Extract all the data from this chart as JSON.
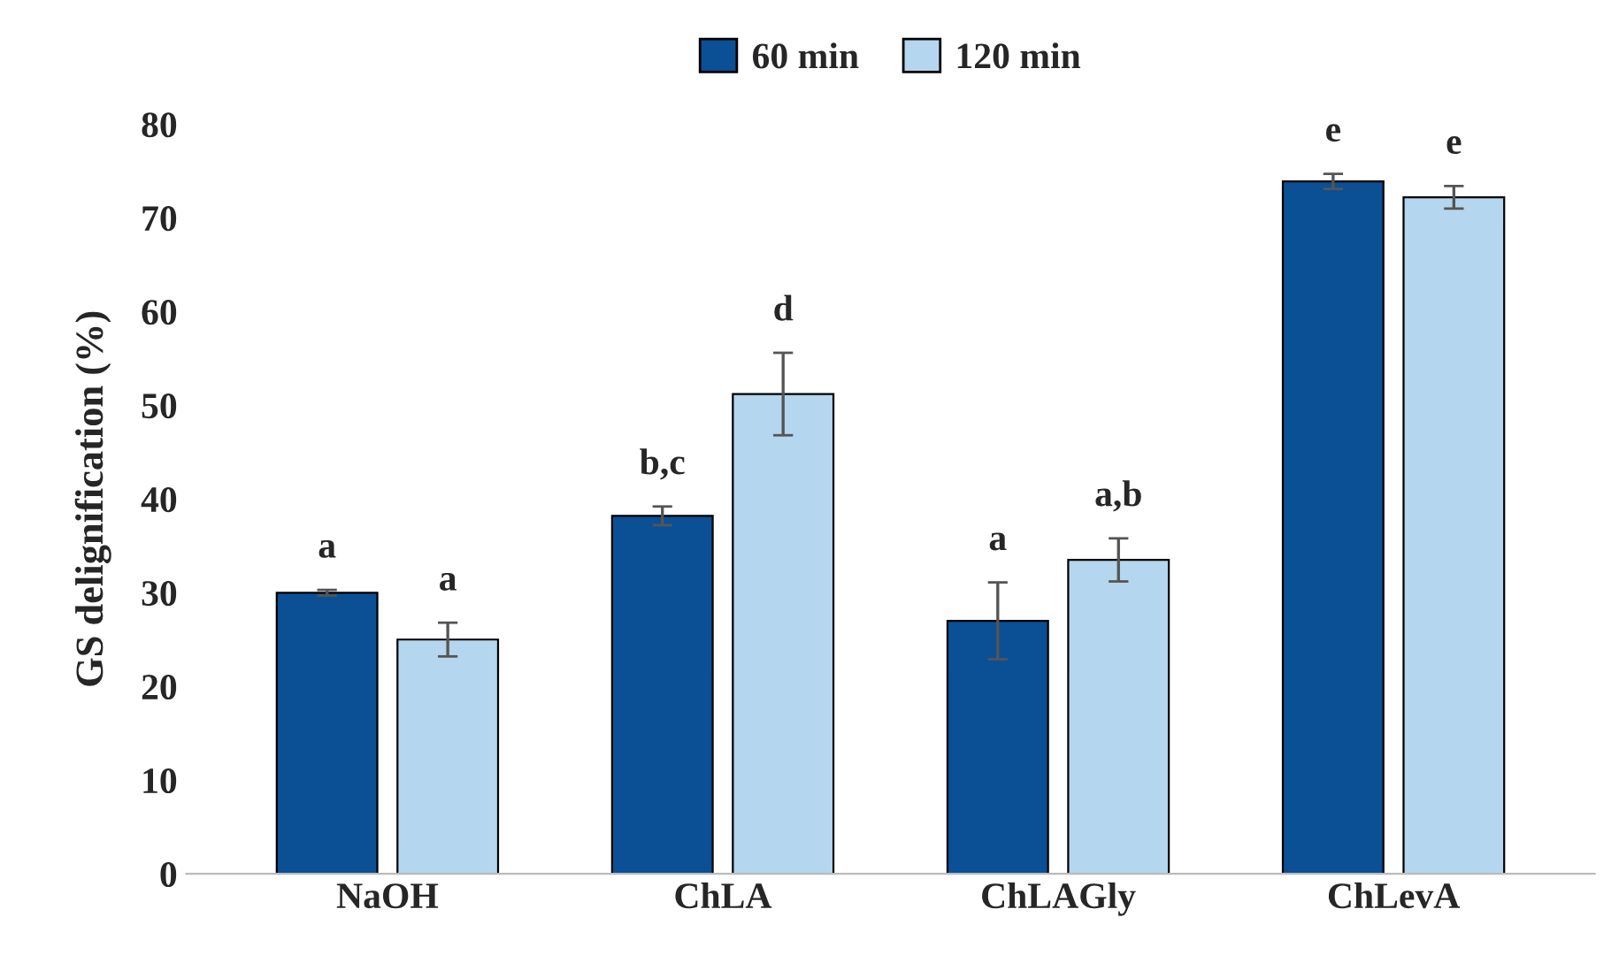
{
  "chart_data": {
    "type": "bar",
    "ylabel": "GS delignification (%)",
    "categories": [
      "NaOH",
      "ChLA",
      "ChLAGly",
      "ChLevA"
    ],
    "series": [
      {
        "name": "60 min",
        "color": "#0b4f95",
        "values": [
          30.0,
          38.2,
          27.0,
          73.9
        ],
        "errors": [
          0.3,
          1.0,
          4.1,
          0.8
        ],
        "value_labels": [
          "a",
          "b,c",
          "a",
          "e"
        ]
      },
      {
        "name": "120 min",
        "color": "#b4d6ee",
        "values": [
          25.0,
          51.2,
          33.5,
          72.2
        ],
        "errors": [
          1.8,
          4.4,
          2.3,
          1.2
        ],
        "value_labels": [
          "a",
          "d",
          "a,b",
          "e"
        ]
      }
    ],
    "ylim": [
      0,
      80
    ],
    "yticks": [
      0,
      10,
      20,
      30,
      40,
      50,
      60,
      70,
      80
    ],
    "grid": false,
    "legend": "top"
  }
}
